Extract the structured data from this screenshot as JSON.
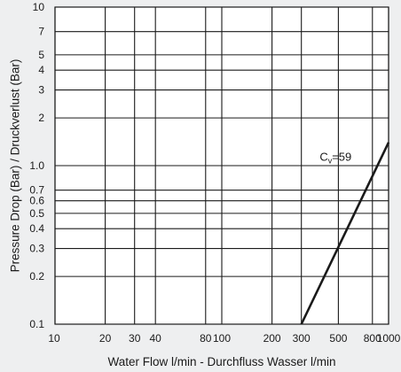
{
  "chart_data": {
    "type": "line",
    "xlabel": "Water Flow l/min - Durchfluss Wasser l/min",
    "ylabel": "Pressure Drop (Bar) / Druckverlust (Bar)",
    "x_scale": "log",
    "y_scale": "log",
    "xlim": [
      10,
      1000
    ],
    "ylim": [
      0.1,
      10
    ],
    "x_ticks": [
      {
        "value": 10,
        "label": "10"
      },
      {
        "value": 20,
        "label": "20"
      },
      {
        "value": 30,
        "label": "30"
      },
      {
        "value": 40,
        "label": "40"
      },
      {
        "value": 80,
        "label": "80"
      },
      {
        "value": 100,
        "label": "100"
      },
      {
        "value": 200,
        "label": "200"
      },
      {
        "value": 300,
        "label": "300"
      },
      {
        "value": 500,
        "label": "500"
      },
      {
        "value": 800,
        "label": "800"
      },
      {
        "value": 1000,
        "label": "1000"
      }
    ],
    "y_ticks": [
      {
        "value": 0.1,
        "label": "0.1"
      },
      {
        "value": 0.2,
        "label": "0.2"
      },
      {
        "value": 0.3,
        "label": "0.3"
      },
      {
        "value": 0.4,
        "label": "0.4"
      },
      {
        "value": 0.5,
        "label": "0.5"
      },
      {
        "value": 0.6,
        "label": "0.6"
      },
      {
        "value": 0.7,
        "label": "0.7"
      },
      {
        "value": 1.0,
        "label": "1.0"
      },
      {
        "value": 2,
        "label": "2"
      },
      {
        "value": 3,
        "label": "3"
      },
      {
        "value": 4,
        "label": "4"
      },
      {
        "value": 5,
        "label": "5"
      },
      {
        "value": 7,
        "label": "7"
      },
      {
        "value": 10,
        "label": "10"
      }
    ],
    "grid": true,
    "series": [
      {
        "name": "Cv=59",
        "label_main": "C",
        "label_sub": "v",
        "label_rest": "=59",
        "x": [
          300,
          1000
        ],
        "y": [
          0.1,
          1.4
        ]
      }
    ]
  },
  "colors": {
    "background": "#eeeff0",
    "plot_area": "#ffffff",
    "grid": "#1a1a1a",
    "line": "#1a1a1a"
  }
}
